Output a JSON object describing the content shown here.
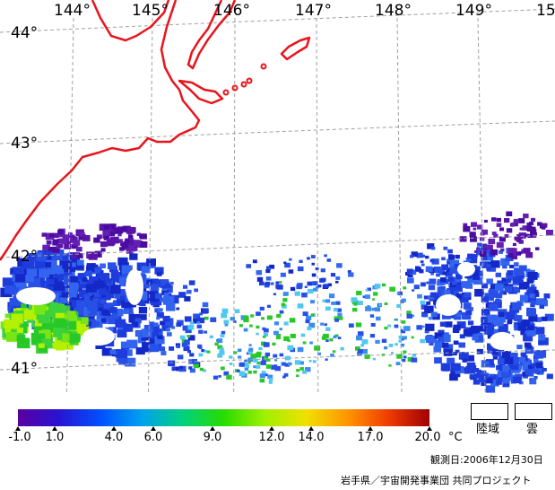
{
  "map": {
    "longitude_labels": [
      "144°",
      "145°",
      "146°",
      "147°",
      "148°",
      "149°",
      "15"
    ],
    "latitude_labels": [
      "44°",
      "43°",
      "42°",
      "41°"
    ],
    "colors": {
      "coastline": "#e8141c",
      "graticule": "#a0a0a0",
      "sst_cold": "#5a14a8",
      "sst_blue": "#2850e6",
      "sst_cyan": "#50c8f0",
      "sst_green": "#28c828",
      "sst_yellowgreen": "#b4f000"
    }
  },
  "legend": {
    "scale_colors": [
      "#5a00a0",
      "#2814d2",
      "#0050ff",
      "#00a0f0",
      "#00d080",
      "#28dc00",
      "#a0f000",
      "#f0e000",
      "#ff9600",
      "#f03c00",
      "#a00000"
    ],
    "ticks": [
      "-1.0",
      "1.0",
      "4.0",
      "6.0",
      "9.0",
      "12.0",
      "14.0",
      "17.0",
      "20.0"
    ],
    "unit": "°C",
    "land_label": "陸域",
    "cloud_label": "雲"
  },
  "footer": {
    "observation_date": "観測日:2006年12月30日",
    "credit": "岩手県／宇宙開発事業団 共同プロジェクト"
  }
}
